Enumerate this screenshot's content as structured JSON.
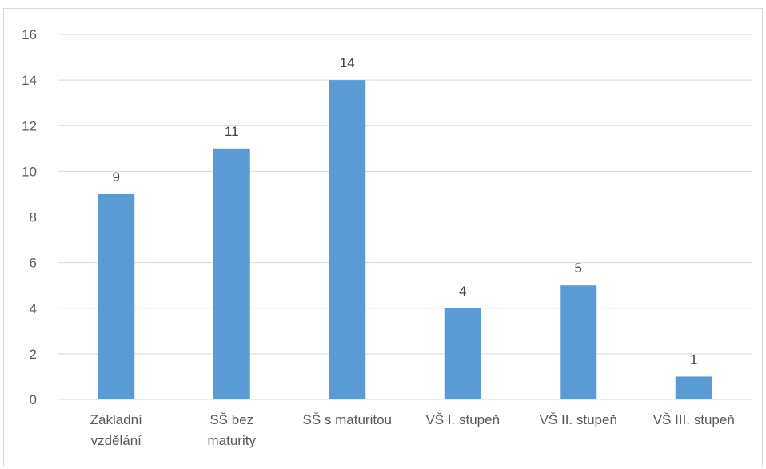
{
  "chart_data": {
    "type": "bar",
    "categories": [
      [
        "Základní",
        "vzdělání"
      ],
      [
        "SŠ bez",
        "maturity"
      ],
      [
        "SŠ s maturitou"
      ],
      [
        "VŠ I. stupeň"
      ],
      [
        "VŠ II. stupeň"
      ],
      [
        "VŠ III. stupeň"
      ]
    ],
    "values": [
      9,
      11,
      14,
      4,
      5,
      1
    ],
    "ylim": [
      0,
      16
    ],
    "yticks": [
      0,
      2,
      4,
      6,
      8,
      10,
      12,
      14,
      16
    ],
    "grid": true,
    "data_labels": true,
    "title": "",
    "xlabel": "",
    "ylabel": "",
    "colors": {
      "bar": "#5b9bd5",
      "grid": "#d9d9d9",
      "axis": "#d9d9d9"
    }
  }
}
